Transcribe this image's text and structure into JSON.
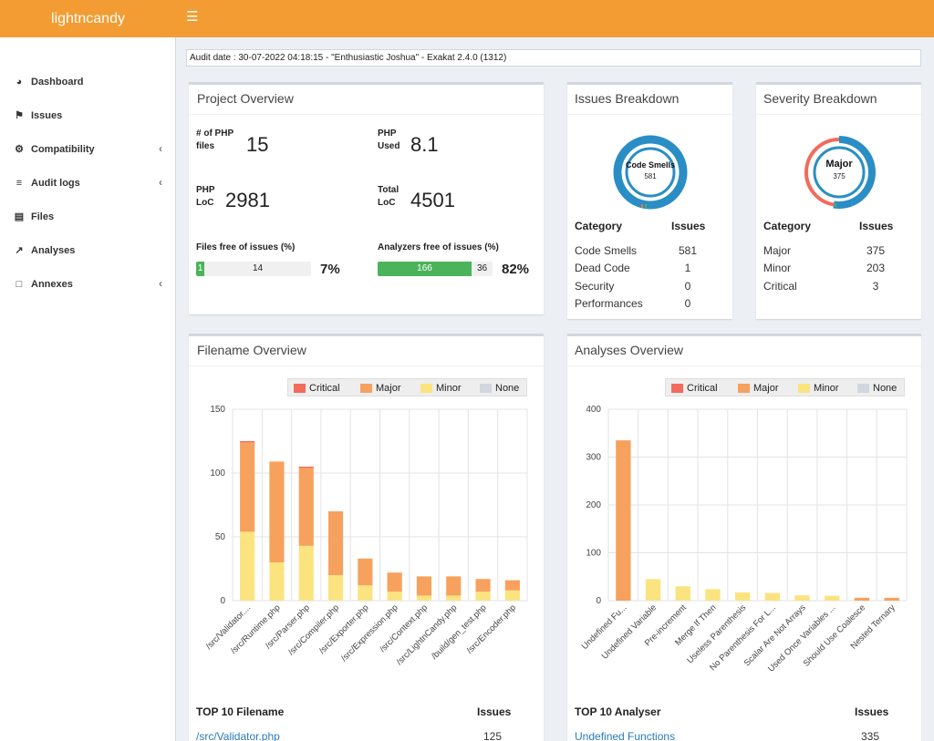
{
  "app": {
    "brand": "lightncandy",
    "menu_icon": "hamburger-icon"
  },
  "sidebar": {
    "items": [
      {
        "label": "Dashboard",
        "icon": "dashboard-icon",
        "expandable": false
      },
      {
        "label": "Issues",
        "icon": "flag-icon",
        "expandable": false
      },
      {
        "label": "Compatibility",
        "icon": "gear-icon",
        "expandable": true
      },
      {
        "label": "Audit logs",
        "icon": "sliders-icon",
        "expandable": true
      },
      {
        "label": "Files",
        "icon": "file-code-icon",
        "expandable": false
      },
      {
        "label": "Analyses",
        "icon": "line-chart-icon",
        "expandable": false
      },
      {
        "label": "Annexes",
        "icon": "note-icon",
        "expandable": true
      }
    ]
  },
  "audit_line": "Audit date : 30-07-2022 04:18:15 - \"Enthusiastic Joshua\" - Exakat 2.4.0 (1312)",
  "project_overview": {
    "title": "Project Overview",
    "php_files_label": "# of PHP files",
    "php_files_value": "15",
    "php_used_label": "PHP Used",
    "php_used_value": "8.1",
    "php_loc_label": "PHP LoC",
    "php_loc_value": "2981",
    "total_loc_label": "Total LoC",
    "total_loc_value": "4501",
    "files_free_label": "Files free of issues (%)",
    "files_free_good": "1",
    "files_free_bad": "14",
    "files_free_pct": "7%",
    "files_free_fraction": 0.07,
    "analyzers_free_label": "Analyzers free of issues (%)",
    "analyzers_free_good": "166",
    "analyzers_free_bad": "36",
    "analyzers_free_pct": "82%",
    "analyzers_free_fraction": 0.82
  },
  "issues_breakdown": {
    "title": "Issues Breakdown",
    "donut_label": "Code Smells",
    "donut_value": "581",
    "col_category": "Category",
    "col_issues": "Issues",
    "rows": [
      {
        "category": "Code Smells",
        "issues": "581"
      },
      {
        "category": "Dead Code",
        "issues": "1"
      },
      {
        "category": "Security",
        "issues": "0"
      },
      {
        "category": "Performances",
        "issues": "0"
      }
    ]
  },
  "severity_breakdown": {
    "title": "Severity Breakdown",
    "donut_label": "Major",
    "donut_value": "375",
    "col_category": "Category",
    "col_issues": "Issues",
    "rows": [
      {
        "category": "Major",
        "issues": "375"
      },
      {
        "category": "Minor",
        "issues": "203"
      },
      {
        "category": "Critical",
        "issues": "3"
      }
    ]
  },
  "legend": {
    "critical": "Critical",
    "major": "Major",
    "minor": "Minor",
    "none": "None"
  },
  "colors": {
    "accent": "#f39c33",
    "critical": "#f26b5b",
    "major": "#f7a15e",
    "minor": "#fbe37f",
    "none": "#d2d6de",
    "donut_blue": "#2a8ec4",
    "bar_green": "#4bb35a"
  },
  "filename_overview": {
    "title": "Filename Overview",
    "table_head": "TOP 10 Filename",
    "table_issues": "Issues",
    "first_row": {
      "name": "/src/Validator.php",
      "issues": "125"
    }
  },
  "analyses_overview": {
    "title": "Analyses Overview",
    "table_head": "TOP 10 Analyser",
    "table_issues": "Issues",
    "first_row": {
      "name": "Undefined Functions",
      "issues": "335"
    }
  },
  "chart_data": [
    {
      "type": "bar",
      "stacked": true,
      "ylim": [
        0,
        150
      ],
      "yticks": [
        "0",
        "50",
        "100",
        "150"
      ],
      "legend": "top-right",
      "grid": true,
      "categories": [
        "/src/Validator....",
        "/src/Runtime.php",
        "/src/Parser.php",
        "/src/Compiler.php",
        "/src/Exporter.php",
        "/src/Expression.php",
        "/src/Context.php",
        "/src/LightnCandy.php",
        "/build/gen_test.php",
        "/src/Encoder.php"
      ],
      "series": [
        {
          "name": "Critical",
          "values": [
            1,
            0,
            1,
            0,
            0,
            0,
            0,
            0,
            0,
            0
          ]
        },
        {
          "name": "Major",
          "values": [
            70,
            79,
            61,
            50,
            21,
            15,
            15,
            15,
            10,
            8
          ]
        },
        {
          "name": "Minor",
          "values": [
            54,
            30,
            43,
            20,
            12,
            7,
            4,
            4,
            7,
            8
          ]
        },
        {
          "name": "None",
          "values": [
            0,
            0,
            0,
            0,
            0,
            0,
            0,
            0,
            0,
            0
          ]
        }
      ]
    },
    {
      "type": "bar",
      "stacked": true,
      "ylim": [
        0,
        400
      ],
      "yticks": [
        "0",
        "100",
        "200",
        "300",
        "400"
      ],
      "legend": "top-right",
      "grid": true,
      "categories": [
        "Undefined Fu...",
        "Undefined Variable",
        "Pre-increment",
        "Merge If Then",
        "Useless Parenthesis",
        "No Parenthesis For L...",
        "Scalar Are Not Arrays",
        "Used Once Variables ...",
        "Should Use Coalesce",
        "Nested Ternary"
      ],
      "series": [
        {
          "name": "Critical",
          "values": [
            0,
            0,
            0,
            0,
            0,
            0,
            0,
            0,
            0,
            0
          ]
        },
        {
          "name": "Major",
          "values": [
            335,
            0,
            0,
            0,
            0,
            0,
            0,
            0,
            6,
            6
          ]
        },
        {
          "name": "Minor",
          "values": [
            0,
            45,
            30,
            24,
            17,
            16,
            11,
            10,
            0,
            0
          ]
        },
        {
          "name": "None",
          "values": [
            0,
            0,
            0,
            0,
            0,
            0,
            0,
            0,
            0,
            0
          ]
        }
      ]
    }
  ]
}
